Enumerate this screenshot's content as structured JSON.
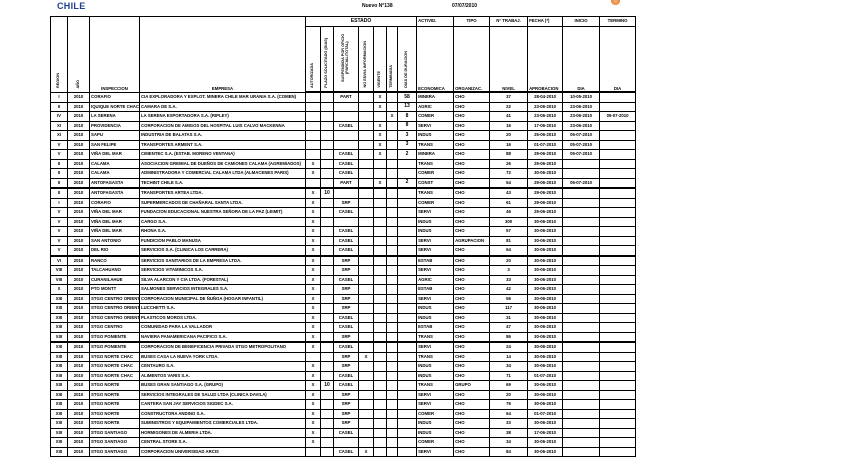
{
  "header": {
    "logo_text": "CHILE",
    "doc_number": "Nuevo N°138",
    "date": "07/07/2010"
  },
  "colors": {
    "logo_blue": "#1f3f8f",
    "logo_red": "#c8102e",
    "seal": "#e0702a"
  },
  "columns": {
    "region": "REGION",
    "anio": "AÑO",
    "inspeccion": "INSPECCION",
    "empresa": "EMPRESA",
    "estado": "ESTADO",
    "estado_cols": [
      "AUTORIZADA",
      "PLAZO SOLICITADO (DIAS)",
      "SUSPENDIDA POR OFICIO (PARCIAL/TOTAL)",
      "NO ENVIA INFORMACION",
      "VIGENTE",
      "TERMINADA",
      "DIAS DE DURACION"
    ],
    "actividad_top": "ACTIVID.",
    "actividad_bottom": "ECONOMICA",
    "tipo_top": "TIPO",
    "tipo_bottom": "ORGANIZAC.",
    "trabaj_top": "N° TRABAJ.",
    "trabaj_bottom": "NIVEL",
    "fecha_top": "FECHA (*)",
    "fecha_bottom": "APROBACION",
    "inicio_top": "INICIO",
    "inicio_bottom": "DIA",
    "termino_top": "TERMINO",
    "termino_bottom": "DIA"
  },
  "rows": [
    [
      "I",
      "2010",
      "CORAFIO",
      "CIA EXPLORADORA Y EXPLOT. MINERA CHILE MAR URANIA S.A. (COMEN)",
      "",
      "",
      "PART",
      "",
      "X",
      "",
      "58",
      "MINERA",
      "CHO",
      "37",
      "28-04-2010",
      "10-05-2010",
      ""
    ],
    [
      "II",
      "2010",
      "IQUIQUE NORTE CHAC",
      "CAMARA DE S.A.",
      "",
      "",
      "",
      "",
      "X",
      "",
      "13",
      "AGRIC",
      "CHO",
      "22",
      "23-06-2010",
      "23-06-2010",
      ""
    ],
    [
      "IV",
      "2010",
      "LA SERENA",
      "LA SERENA EXPORTADORA S.A. (RIPLEY)",
      "",
      "",
      "",
      "",
      "",
      "X",
      "8",
      "COMER",
      "CHO",
      "41",
      "23-06-2010",
      "23-06-2010",
      "05-07-2010"
    ],
    [
      "XI",
      "2010",
      "PROVIDENCIA",
      "CORPORACION DE AMIGOS DEL HOSPITAL LUIS CALVO MACKENNA",
      "",
      "",
      "CASEL",
      "",
      "X",
      "",
      "8",
      "SERVI",
      "CHO",
      "16",
      "17-06-2010",
      "23-06-2010",
      ""
    ],
    [
      "XI",
      "2010",
      "SAPU",
      "INDUSTRIA DE BALATAS S.A.",
      "",
      "",
      "",
      "",
      "X",
      "",
      "3",
      "INDUS",
      "CHO",
      "20",
      "25-06-2010",
      "05-07-2010",
      ""
    ],
    [
      "V",
      "2010",
      "SAN FELIPE",
      "TRANSPORTES ARMENT S.A.",
      "",
      "",
      "",
      "",
      "X",
      "",
      "3",
      "TRANS",
      "CHO",
      "16",
      "01-07-2010",
      "05-07-2010",
      ""
    ],
    [
      "V",
      "2010",
      "VIÑA DEL MAR",
      "CIMENTEC S.A. (ESTAB. MORENO VENTANA)",
      "",
      "",
      "CASEL",
      "",
      "X",
      "",
      "2",
      "MINERA",
      "CHO",
      "88",
      "29-06-2010",
      "05-07-2010",
      ""
    ],
    [
      "II",
      "2010",
      "CALAMA",
      "ASOCIACION GREMIAL DE DUEÑOS DE CAMIONES CALAMA (AGREMIADOS)",
      "X",
      "",
      "CASEL",
      "",
      "",
      "",
      "",
      "TRANS",
      "CHO",
      "26",
      "29-06-2010",
      "",
      ""
    ],
    [
      "II",
      "2010",
      "CALAMA",
      "ADMINISTRADORA Y COMERCIAL CALAMA LTDA (ALMACENES PARIS)",
      "X",
      "",
      "CASEL",
      "",
      "",
      "",
      "",
      "COMER",
      "CHO",
      "72",
      "30-06-2010",
      "",
      ""
    ],
    [
      "II",
      "2010",
      "ANTOFAGASTA",
      "TECHINT CHILE S.A.",
      "",
      "",
      "PART",
      "",
      "X",
      "",
      "2",
      "CONST",
      "CHO",
      "54",
      "29-06-2010",
      "05-07-2010",
      ""
    ],
    [
      "II",
      "2010",
      "ANTOFAGASTA",
      "TRANSPORTES ARTEA LTDA.",
      "X",
      "10",
      "",
      "",
      "",
      "",
      "",
      "TRANS",
      "CHO",
      "43",
      "29-06-2010",
      "",
      ""
    ],
    [
      "I",
      "2010",
      "CORAFIO",
      "SUPERMERCADOS DE CHAÑARAL SANTA LTDA.",
      "X",
      "",
      "SRP",
      "",
      "",
      "",
      "",
      "COMER",
      "CHO",
      "61",
      "29-06-2010",
      "",
      ""
    ],
    [
      "V",
      "2010",
      "VIÑA DEL MAR",
      "FUNDACION EDUCACIONAL NUESTRA SEÑORA DE LA PAZ (LEIMIT)",
      "X",
      "",
      "CASEL",
      "",
      "",
      "",
      "",
      "SERVI",
      "CHO",
      "46",
      "29-06-2010",
      "",
      ""
    ],
    [
      "V",
      "2010",
      "VIÑA DEL MAR",
      "CARGO S.A.",
      "X",
      "",
      "",
      "",
      "",
      "",
      "",
      "INDUS",
      "CHO",
      "300",
      "30-06-2010",
      "",
      ""
    ],
    [
      "V",
      "2010",
      "VIÑA DEL MAR",
      "RHONA S.A.",
      "X",
      "",
      "CASEL",
      "",
      "",
      "",
      "",
      "INDUS",
      "CHO",
      "57",
      "30-06-2010",
      "",
      ""
    ],
    [
      "V",
      "2010",
      "SAN ANTONIO",
      "FUNDICION PABLO MANUSA",
      "X",
      "",
      "CASEL",
      "",
      "",
      "",
      "",
      "SERVI",
      "AGRUPACION",
      "81",
      "30-06-2010",
      "",
      ""
    ],
    [
      "V",
      "2010",
      "DEL RIO",
      "SERVICIOS S.A. (CLINICA LOS CARRERA)",
      "X",
      "",
      "CASEL",
      "",
      "",
      "",
      "",
      "SERVI",
      "CHO",
      "64",
      "30-06-2010",
      "",
      ""
    ],
    [
      "VI",
      "2010",
      "RANCO",
      "SERVICIOS SANITARIOS DE LA EMPRESA LTDA.",
      "X",
      "",
      "SRP",
      "",
      "",
      "",
      "",
      "ESTAB",
      "CHO",
      "20",
      "30-06-2010",
      "",
      ""
    ],
    [
      "VIII",
      "2010",
      "TALCAHUANO",
      "SERVICIOS VITAMINICOS S.A.",
      "X",
      "",
      "SRP",
      "",
      "",
      "",
      "",
      "SERVI",
      "CHO",
      "3",
      "30-06-2010",
      "",
      ""
    ],
    [
      "VIII",
      "2010",
      "CURANILAHUE",
      "SILVA ALARCON Y CIA LTDA. (FORESTAL)",
      "X",
      "",
      "CASEL",
      "",
      "",
      "",
      "",
      "AGRIC",
      "CHO",
      "33",
      "30-06-2010",
      "",
      ""
    ],
    [
      "X",
      "2010",
      "PTO MONTT",
      "SALMONES SERVICIOS INTEGRALES S.A.",
      "X",
      "",
      "SRP",
      "",
      "",
      "",
      "",
      "ESTAB",
      "CHO",
      "42",
      "30-06-2010",
      "",
      ""
    ],
    [
      "XIII",
      "2010",
      "STGO CENTRO ORIENTE",
      "CORPORACION MUNICIPAL DE ÑUÑOA (HOGAR INFANTIL)",
      "X",
      "",
      "SRP",
      "",
      "",
      "",
      "",
      "SERVI",
      "CHO",
      "56",
      "30-06-2010",
      "",
      ""
    ],
    [
      "XIII",
      "2010",
      "STGO CENTRO ORIENTE",
      "LUCCHETTI S.A.",
      "X",
      "",
      "SRP",
      "",
      "",
      "",
      "",
      "INDUS",
      "CHO",
      "117",
      "30-06-2010",
      "",
      ""
    ],
    [
      "XIII",
      "2010",
      "STGO CENTRO ORIENTE",
      "PLASTICOS MOROS LTDA.",
      "X",
      "",
      "CASEL",
      "",
      "",
      "",
      "",
      "INDUS",
      "CHO",
      "31",
      "30-06-2010",
      "",
      ""
    ],
    [
      "XIII",
      "2010",
      "STGO CENTRO",
      "COMUNIDAD PARA LA VALLADOR",
      "X",
      "",
      "CASEL",
      "",
      "",
      "",
      "",
      "ESTAB",
      "CHO",
      "47",
      "30-06-2010",
      "",
      ""
    ],
    [
      "XIII",
      "2010",
      "STGO PONIENTE",
      "NAVIERA PANAMERICANA PACIFICO S.A.",
      "X",
      "",
      "SRP",
      "",
      "",
      "",
      "",
      "TRANS",
      "CHO",
      "86",
      "30-06-2010",
      "",
      ""
    ],
    [
      "XIII",
      "2010",
      "STGO PONIENTE",
      "CORPORACION DE BENEFICENCIA PRIVADA STGO METROPOLITANO",
      "X",
      "",
      "CASEL",
      "",
      "",
      "",
      "",
      "SERVI",
      "CHO",
      "24",
      "30-06-2010",
      "",
      ""
    ],
    [
      "XIII",
      "2010",
      "STGO NORTE CHAC",
      "BUSES CASA LA NUEVA YORK LTDA.",
      "",
      "",
      "SRP",
      "X",
      "",
      "",
      "",
      "TRANS",
      "CHO",
      "14",
      "30-06-2010",
      "",
      ""
    ],
    [
      "XIII",
      "2010",
      "STGO NORTE CHAC",
      "CENTAURO S.A.",
      "X",
      "",
      "SRP",
      "",
      "",
      "",
      "",
      "INDUS",
      "CHO",
      "34",
      "30-06-2010",
      "",
      ""
    ],
    [
      "XIII",
      "2010",
      "STGO NORTE CHAC",
      "ALIMENTOS VARIS S.A.",
      "X",
      "",
      "CASEL",
      "",
      "",
      "",
      "",
      "INDUS",
      "CHO",
      "71",
      "01-07-2010",
      "",
      ""
    ],
    [
      "XIII",
      "2010",
      "STGO NORTE",
      "BUSES GRAN SANTIAGO S.A. (GRUPO)",
      "X",
      "10",
      "CASEL",
      "",
      "",
      "",
      "",
      "TRANS",
      "GRUPO",
      "69",
      "30-06-2010",
      "",
      ""
    ],
    [
      "XIII",
      "2010",
      "STGO NORTE",
      "SERVICIOS INTEGRALES DE SALUD LTDA (CLINICA DAVILA)",
      "X",
      "",
      "SRP",
      "",
      "",
      "",
      "",
      "SERVI",
      "CHO",
      "20",
      "30-06-2010",
      "",
      ""
    ],
    [
      "XIII",
      "2010",
      "STGO NORTE",
      "CANTERA SAN JAY SERVICIOS SIGDEC S.A.",
      "X",
      "",
      "SRP",
      "",
      "",
      "",
      "",
      "SERVI",
      "CHO",
      "76",
      "30-06-2010",
      "",
      ""
    ],
    [
      "XIII",
      "2010",
      "STGO NORTE",
      "CONSTRUCTORA ANDINO S.A.",
      "X",
      "",
      "SRP",
      "",
      "",
      "",
      "",
      "COMER",
      "CHO",
      "64",
      "01-07-2010",
      "",
      ""
    ],
    [
      "XIII",
      "2010",
      "STGO NORTE",
      "SUMINISTROS Y EQUIPAMIENTOS COMERCIALES LTDA.",
      "X",
      "",
      "SRP",
      "",
      "",
      "",
      "",
      "INDUS",
      "CHO",
      "33",
      "30-06-2010",
      "",
      ""
    ],
    [
      "XIII",
      "2010",
      "STGO SANTIAGO",
      "HORMIGONES DE ALMERIA LTDA.",
      "X",
      "",
      "CASEL",
      "",
      "",
      "",
      "",
      "INDUS",
      "CHO",
      "38",
      "17-06-2010",
      "",
      ""
    ],
    [
      "XIII",
      "2010",
      "STGO SANTIAGO",
      "CENTRAL STORE S.A.",
      "X",
      "",
      "",
      "",
      "",
      "",
      "",
      "COMER",
      "CHO",
      "34",
      "30-06-2010",
      "",
      ""
    ],
    [
      "XIII",
      "2010",
      "STGO SANTIAGO",
      "CORPORACION UNIVERSIDAD ARCIS",
      "",
      "",
      "CASEL",
      "X",
      "",
      "",
      "",
      "SERVI",
      "CHO",
      "84",
      "30-06-2010",
      "",
      ""
    ]
  ]
}
